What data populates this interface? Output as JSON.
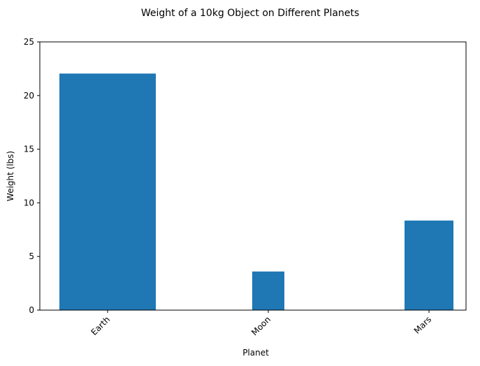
{
  "chart_data": {
    "type": "bar",
    "title": "Weight of a 10kg Object on Different Planets",
    "xlabel": "Planet",
    "ylabel": "Weight (lbs)",
    "categories": [
      "Earth",
      "Moon",
      "Mars"
    ],
    "values": [
      22.05,
      3.6,
      8.35
    ],
    "ylim": [
      0,
      25
    ],
    "yticks": [
      "0",
      "5",
      "10",
      "15",
      "20",
      "25"
    ],
    "grid": false,
    "legend": "none",
    "colors": {
      "bar": "#1f77b4",
      "axis": "#000000"
    }
  }
}
